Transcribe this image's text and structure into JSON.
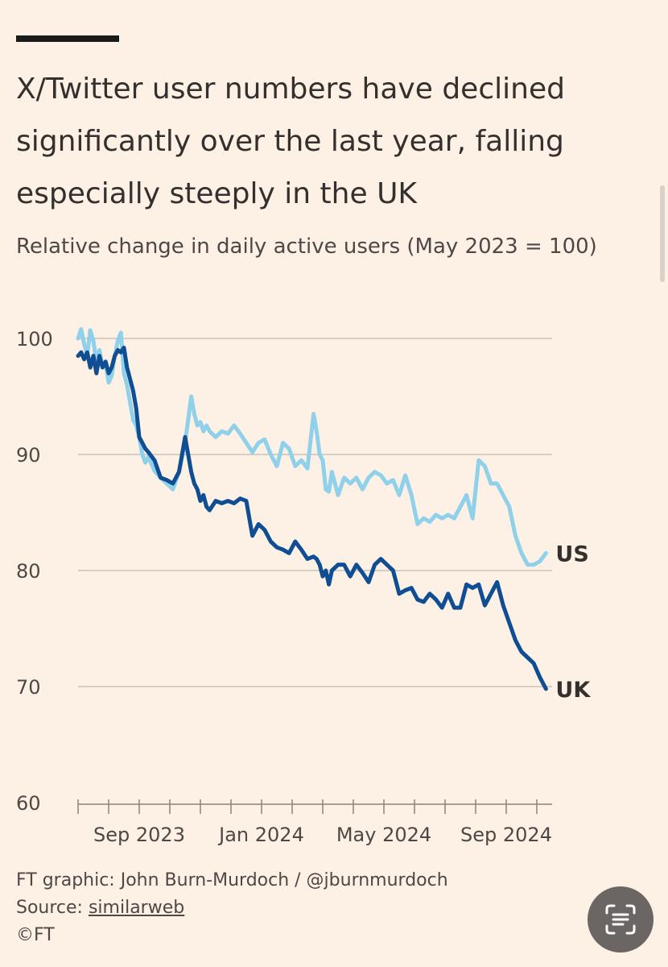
{
  "title": "X/Twitter user numbers have declined significantly over the last year, falling especially steeply in the UK",
  "subtitle": "Relative change in daily active users (May 2023 = 100)",
  "footer": {
    "credit": "FT graphic: John Burn-Murdoch / @jburnmurdoch",
    "source_prefix": "Source: ",
    "source_name": "similarweb",
    "copyright": "©FT"
  },
  "chart_data": {
    "type": "line",
    "title": "X/Twitter user numbers have declined significantly over the last year, falling especially steeply in the UK",
    "ylabel": "Relative change in daily active users (May 2023 = 100)",
    "xlabel": "",
    "x_range": [
      0,
      15.5
    ],
    "x_unit": "months since 2023-06-01",
    "x_ticks": [
      0,
      1,
      2,
      3,
      4,
      5,
      6,
      7,
      8,
      9,
      10,
      11,
      12,
      13,
      14,
      15
    ],
    "x_tick_labels": [
      {
        "value": 2,
        "label": "Sep 2023"
      },
      {
        "value": 6,
        "label": "Jan 2024"
      },
      {
        "value": 10,
        "label": "May 2024"
      },
      {
        "value": 14,
        "label": "Sep 2024"
      }
    ],
    "ylim": [
      60,
      100
    ],
    "y_ticks": [
      60,
      70,
      80,
      90,
      100
    ],
    "grid": true,
    "series": [
      {
        "name": "US",
        "color": "#8fd0ea",
        "x": [
          0,
          0.1,
          0.2,
          0.3,
          0.4,
          0.5,
          0.6,
          0.7,
          0.8,
          0.9,
          1.0,
          1.1,
          1.2,
          1.3,
          1.4,
          1.5,
          1.6,
          1.7,
          1.8,
          1.9,
          2.0,
          2.1,
          2.2,
          2.3,
          2.5,
          2.7,
          2.9,
          3.1,
          3.3,
          3.5,
          3.7,
          3.8,
          3.9,
          4.0,
          4.1,
          4.2,
          4.3,
          4.5,
          4.7,
          4.9,
          5.1,
          5.3,
          5.5,
          5.7,
          5.9,
          6.1,
          6.3,
          6.5,
          6.7,
          6.9,
          7.1,
          7.3,
          7.5,
          7.7,
          7.8,
          7.9,
          8.0,
          8.1,
          8.2,
          8.3,
          8.5,
          8.7,
          8.9,
          9.1,
          9.3,
          9.5,
          9.7,
          9.9,
          10.1,
          10.3,
          10.5,
          10.7,
          10.9,
          11.1,
          11.3,
          11.5,
          11.7,
          11.9,
          12.1,
          12.3,
          12.5,
          12.7,
          12.9,
          13.1,
          13.3,
          13.5,
          13.7,
          13.9,
          14.1,
          14.3,
          14.5,
          14.7,
          14.9,
          15.1,
          15.3
        ],
        "values": [
          100,
          100.8,
          99.5,
          98.6,
          100.7,
          99.8,
          98.0,
          99.0,
          97.5,
          97.8,
          96.2,
          96.8,
          98.5,
          99.8,
          100.5,
          97.0,
          96.0,
          94.5,
          93.0,
          92.5,
          91.5,
          90.0,
          89.3,
          89.8,
          88.6,
          88.0,
          87.5,
          87.0,
          88.5,
          91.0,
          95.0,
          93.5,
          92.5,
          92.8,
          92.0,
          92.5,
          92.0,
          91.5,
          92.0,
          91.8,
          92.5,
          91.8,
          91.0,
          90.2,
          91.0,
          91.3,
          90.0,
          89.0,
          91.0,
          90.5,
          89.0,
          89.5,
          88.8,
          93.5,
          92.0,
          90.0,
          89.5,
          87.0,
          86.8,
          88.5,
          86.5,
          88.0,
          87.5,
          88.0,
          87.0,
          88.0,
          88.5,
          88.2,
          87.5,
          87.8,
          86.5,
          88.2,
          86.5,
          84.0,
          84.5,
          84.2,
          84.8,
          84.5,
          84.8,
          84.5,
          85.5,
          86.5,
          84.5,
          89.5,
          89.0,
          87.5,
          87.5,
          86.5,
          85.5,
          83.0,
          81.5,
          80.5,
          80.5,
          80.8,
          81.5
        ]
      },
      {
        "name": "UK",
        "color": "#0f4e93",
        "x": [
          0,
          0.1,
          0.2,
          0.3,
          0.4,
          0.5,
          0.6,
          0.7,
          0.8,
          0.9,
          1.0,
          1.1,
          1.2,
          1.3,
          1.4,
          1.5,
          1.6,
          1.7,
          1.8,
          1.9,
          2.0,
          2.1,
          2.2,
          2.3,
          2.5,
          2.7,
          2.9,
          3.1,
          3.3,
          3.5,
          3.7,
          3.8,
          3.9,
          4.0,
          4.1,
          4.2,
          4.3,
          4.5,
          4.7,
          4.9,
          5.1,
          5.3,
          5.5,
          5.7,
          5.9,
          6.1,
          6.3,
          6.5,
          6.7,
          6.9,
          7.1,
          7.3,
          7.5,
          7.7,
          7.8,
          7.9,
          8.0,
          8.1,
          8.2,
          8.3,
          8.5,
          8.7,
          8.9,
          9.1,
          9.3,
          9.5,
          9.7,
          9.9,
          10.1,
          10.3,
          10.5,
          10.7,
          10.9,
          11.1,
          11.3,
          11.5,
          11.7,
          11.9,
          12.1,
          12.3,
          12.5,
          12.7,
          12.9,
          13.1,
          13.3,
          13.5,
          13.7,
          13.9,
          14.1,
          14.3,
          14.5,
          14.7,
          14.9,
          15.1,
          15.3
        ],
        "values": [
          98.5,
          98.8,
          98.2,
          98.8,
          97.5,
          98.5,
          97.0,
          98.5,
          97.5,
          98.0,
          97.0,
          97.5,
          98.5,
          99.0,
          98.8,
          99.2,
          97.5,
          96.5,
          95.5,
          94.0,
          91.5,
          91.0,
          90.5,
          90.2,
          89.5,
          88.0,
          87.8,
          87.5,
          88.5,
          91.5,
          88.5,
          87.5,
          87.0,
          86.0,
          86.5,
          85.5,
          85.2,
          86.0,
          85.8,
          86.0,
          85.8,
          86.2,
          86.0,
          83.0,
          84.0,
          83.5,
          82.5,
          82.0,
          81.8,
          81.5,
          82.5,
          81.8,
          81.0,
          81.2,
          81.0,
          80.5,
          79.5,
          80.0,
          78.8,
          80.0,
          80.5,
          80.5,
          79.5,
          80.5,
          79.8,
          79.0,
          80.5,
          81.0,
          80.5,
          80.0,
          78.0,
          78.3,
          78.5,
          77.5,
          77.3,
          78.0,
          77.5,
          76.8,
          78.0,
          76.8,
          76.8,
          78.8,
          78.5,
          78.8,
          77.0,
          78.0,
          79.0,
          77.0,
          75.5,
          74.0,
          73.0,
          72.5,
          72.0,
          70.8,
          69.8
        ]
      }
    ],
    "series_labels": [
      "US",
      "UK"
    ],
    "x_axis_style": "ticks-only"
  }
}
